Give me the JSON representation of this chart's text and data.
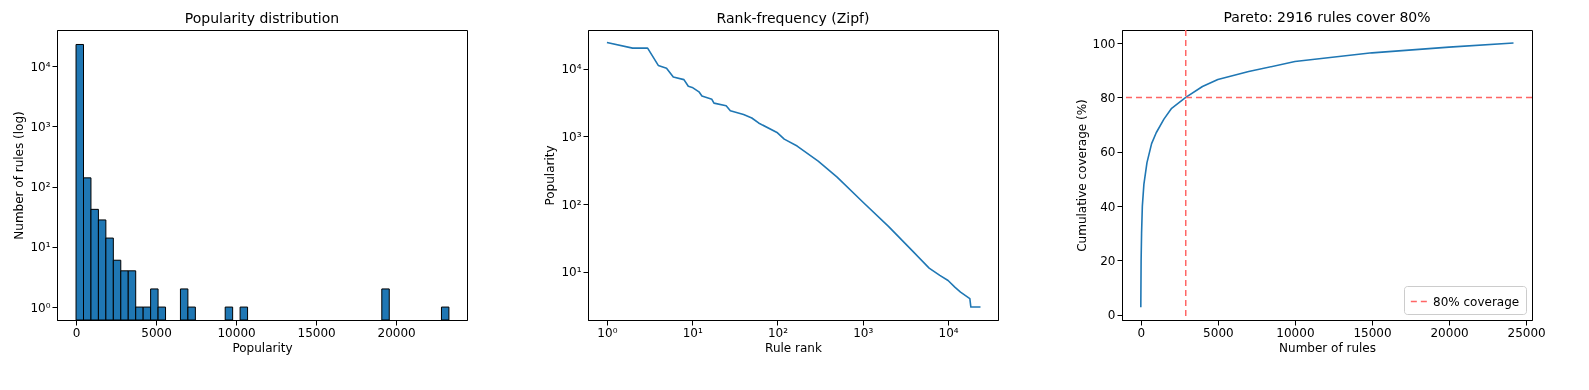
{
  "chart_data": [
    {
      "type": "histogram",
      "title": "Popularity distribution",
      "xlabel": "Popularity",
      "ylabel": "Number of rules (log)",
      "color": "#1f77b4",
      "log": "y",
      "grid": false,
      "bins": [
        0,
        466,
        932,
        1398,
        1864,
        2330,
        2796,
        3262,
        3728,
        4194,
        4660,
        5126,
        5592,
        6058,
        6524,
        6990,
        7456,
        7922,
        8388,
        8854,
        9320,
        9786,
        10252,
        10718,
        11184,
        11650,
        12116,
        12582,
        13048,
        13514,
        13980,
        14446,
        14912,
        15378,
        15844,
        16310,
        16776,
        17242,
        17708,
        18174,
        18640,
        19106,
        19572,
        20038,
        20504,
        20970,
        21436,
        21902,
        22368,
        22834,
        23300
      ],
      "values": [
        23000,
        140,
        42,
        28,
        14,
        6,
        4,
        4,
        1,
        1,
        2,
        1,
        null,
        null,
        2,
        1,
        null,
        null,
        null,
        null,
        1,
        null,
        1,
        null,
        null,
        null,
        null,
        null,
        null,
        null,
        null,
        null,
        null,
        null,
        null,
        null,
        null,
        null,
        null,
        null,
        null,
        2,
        null,
        null,
        null,
        null,
        null,
        null,
        null,
        1
      ],
      "xlim": [
        -1190,
        24430
      ],
      "xticks": [
        0,
        5000,
        10000,
        15000,
        20000
      ],
      "ylim": [
        0.61,
        40000
      ],
      "yticks": [
        {
          "value": 1,
          "label": "10⁰"
        },
        {
          "value": 10,
          "label": "10¹"
        },
        {
          "value": 100,
          "label": "10²"
        },
        {
          "value": 1000,
          "label": "10³"
        },
        {
          "value": 10000,
          "label": "10⁴"
        }
      ]
    },
    {
      "type": "line",
      "title": "Rank-frequency (Zipf)",
      "xlabel": "Rule rank",
      "ylabel": "Popularity",
      "log": "xy",
      "grid": false,
      "series": [
        {
          "color": "#1f77b4",
          "x": [
            1,
            2,
            3,
            4,
            5,
            6,
            8,
            9,
            10,
            12,
            13,
            17,
            18,
            25,
            28,
            40,
            50,
            60,
            100,
            120,
            170,
            300,
            500,
            1000,
            2000,
            4000,
            6000,
            8000,
            10000,
            12000,
            14000,
            18000,
            18500,
            24000
          ],
          "values": [
            24400,
            20200,
            20200,
            11200,
            10200,
            7560,
            6900,
            5500,
            5300,
            4560,
            3950,
            3530,
            3100,
            2830,
            2390,
            2100,
            1870,
            1580,
            1130,
            910,
            720,
            430,
            250,
            107,
            46.8,
            19.1,
            11.3,
            8.8,
            7.4,
            5.9,
            5,
            4,
            3,
            3
          ]
        }
      ],
      "xlim": [
        0.6,
        38500
      ],
      "xticks": [
        {
          "value": 1,
          "label": "10⁰"
        },
        {
          "value": 10,
          "label": "10¹"
        },
        {
          "value": 100,
          "label": "10²"
        },
        {
          "value": 1000,
          "label": "10³"
        },
        {
          "value": 10000,
          "label": "10⁴"
        }
      ],
      "ylim": [
        1.93,
        37400
      ],
      "yticks": [
        {
          "value": 10,
          "label": "10¹"
        },
        {
          "value": 100,
          "label": "10²"
        },
        {
          "value": 1000,
          "label": "10³"
        },
        {
          "value": 10000,
          "label": "10⁴"
        }
      ]
    },
    {
      "type": "line",
      "title": "Pareto: 2916 rules cover 80%",
      "xlabel": "Number of rules",
      "ylabel": "Cumulative coverage (%)",
      "grid": false,
      "legend": "bottom right",
      "series": [
        {
          "color": "#1f77b4",
          "x": [
            0,
            20,
            50,
            100,
            200,
            400,
            700,
            1000,
            1500,
            2000,
            2916,
            4000,
            5000,
            7000,
            10000,
            15000,
            20000,
            24180
          ],
          "values": [
            2.8,
            20,
            30,
            40,
            48,
            56,
            63,
            67,
            72,
            76,
            80,
            84,
            86.6,
            89.5,
            93.2,
            96.4,
            98.5,
            100
          ]
        }
      ],
      "xlim": [
        -1220,
        25380
      ],
      "xticks": [
        0,
        5000,
        10000,
        15000,
        20000,
        25000
      ],
      "ylim": [
        -1.9,
        104.8
      ],
      "yticks": [
        0,
        20,
        40,
        60,
        80,
        100
      ],
      "ref_lines": [
        {
          "axis": "y",
          "value": 80,
          "label": "80% coverage",
          "color": "#ff6666",
          "line_style": "dashed"
        },
        {
          "axis": "x",
          "value": 2916,
          "color": "#ff6666",
          "line_style": "dashed"
        }
      ]
    }
  ]
}
